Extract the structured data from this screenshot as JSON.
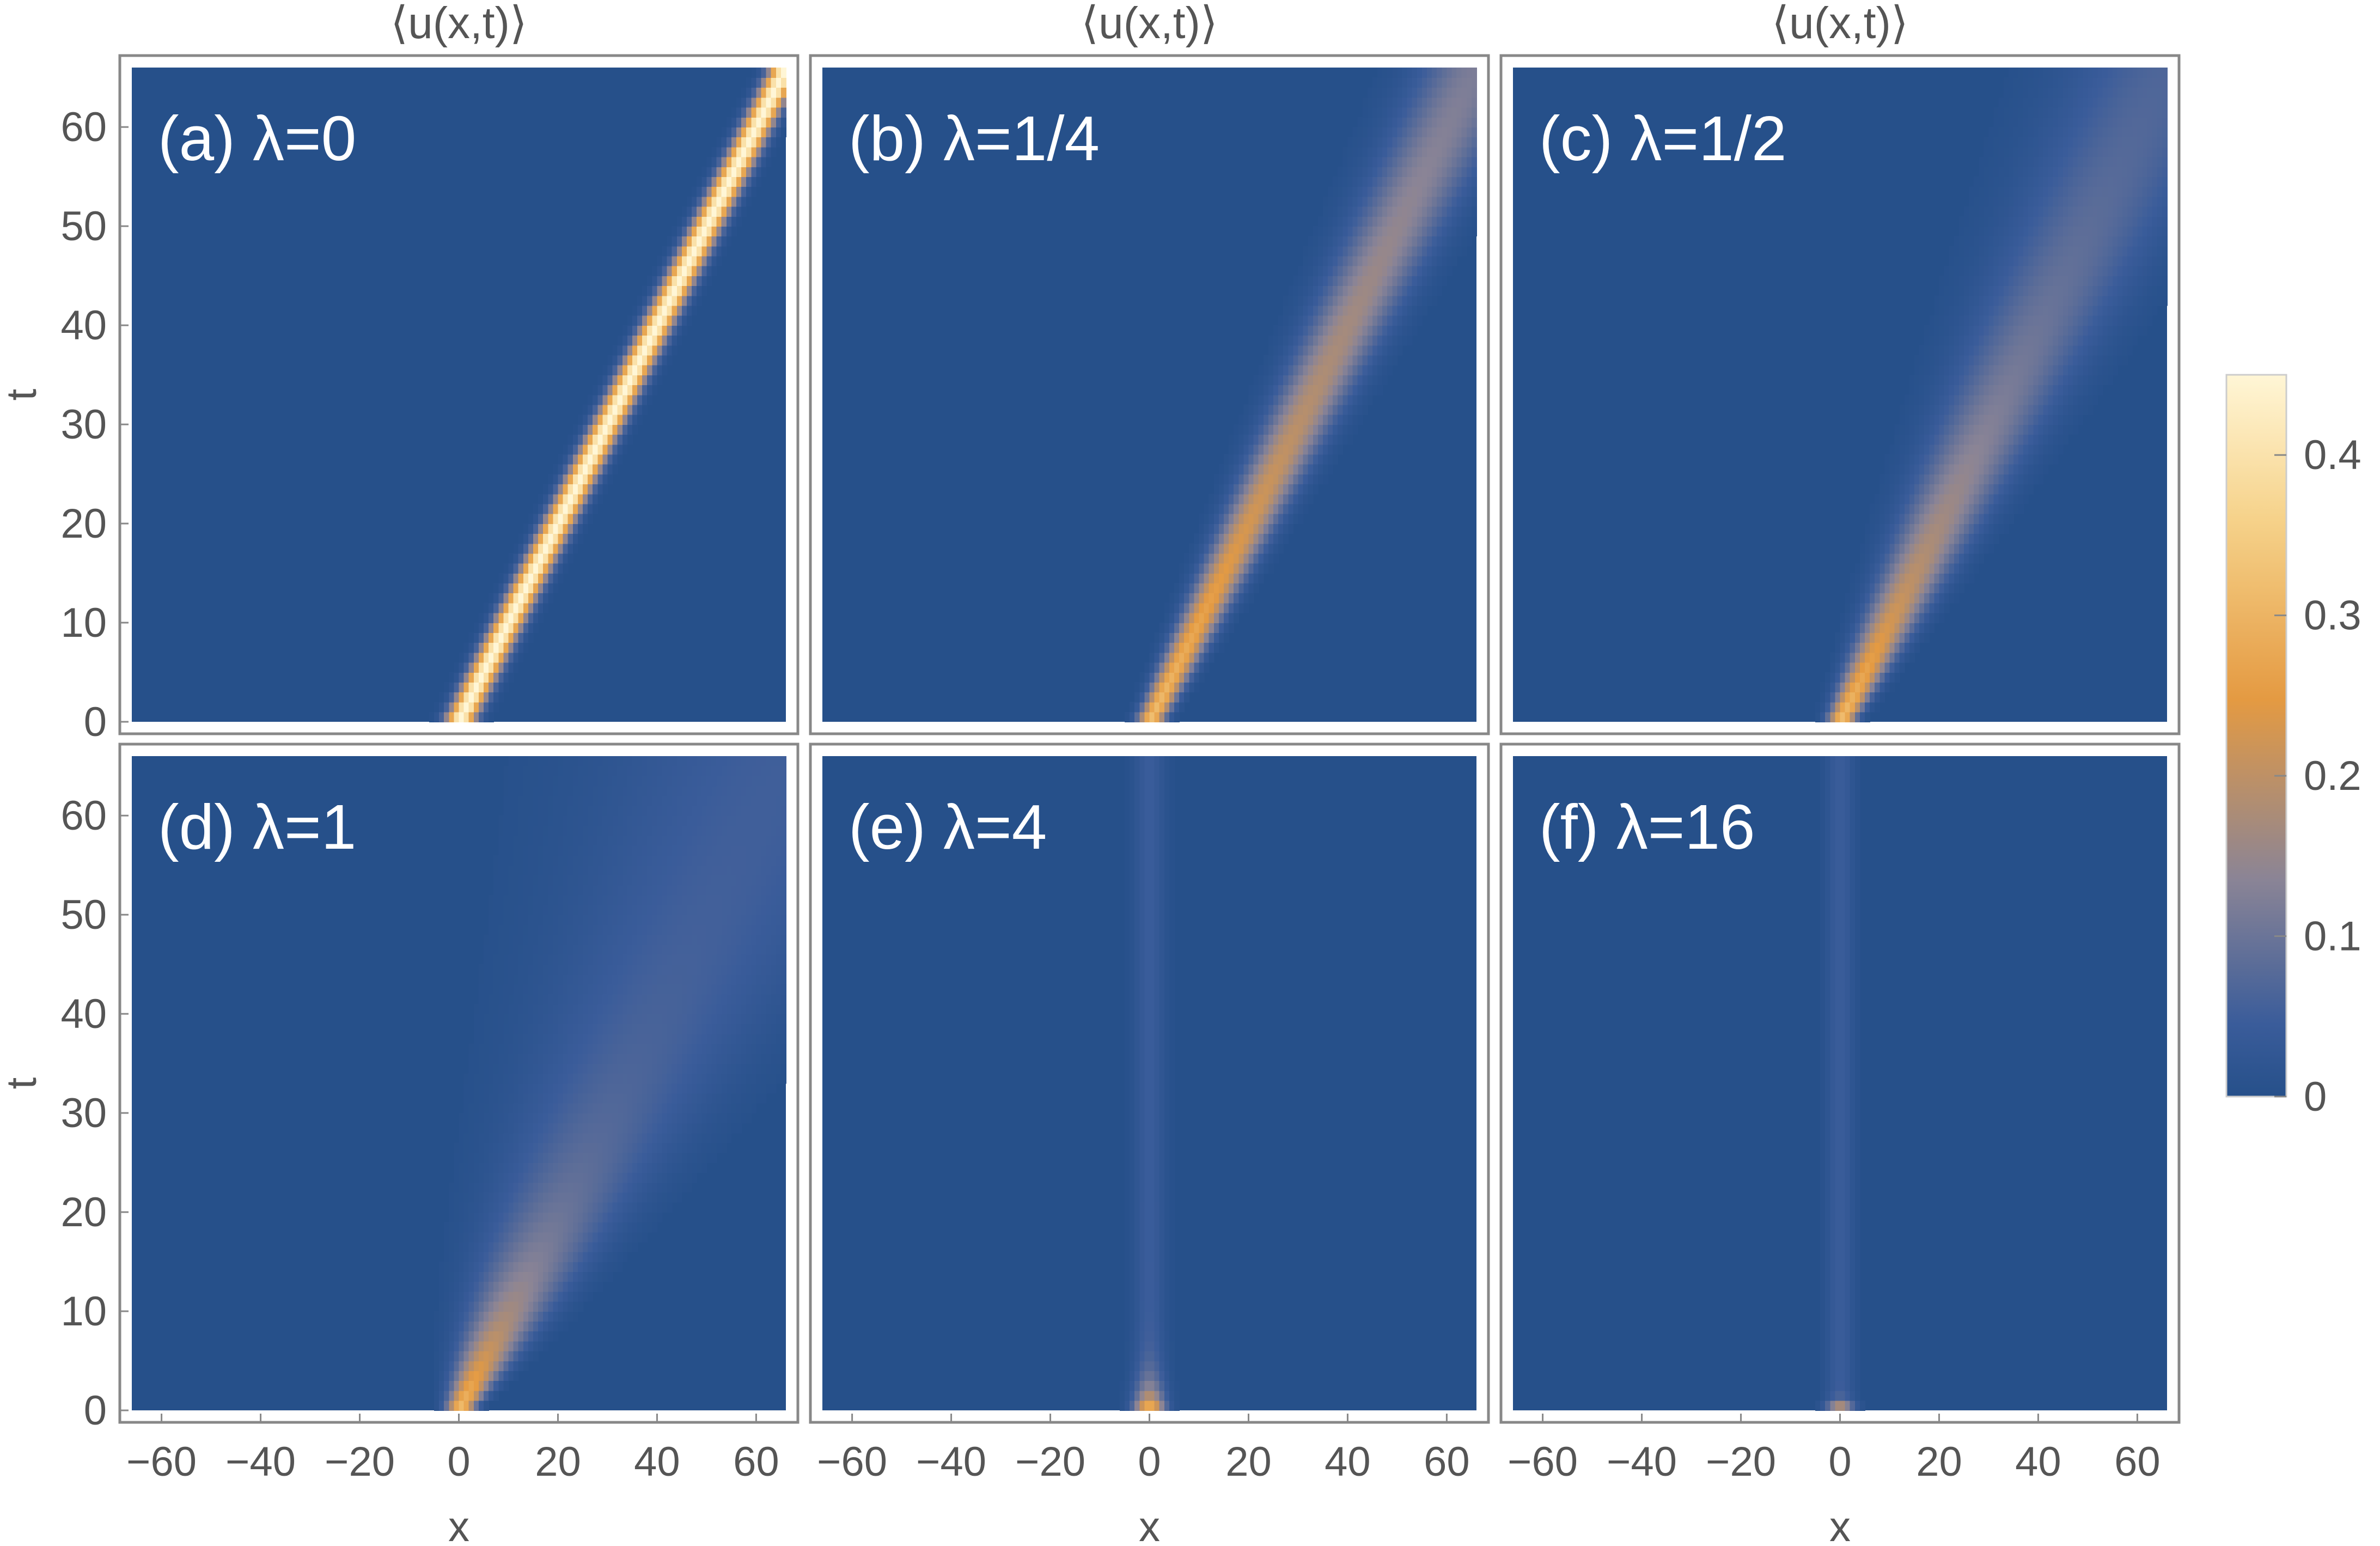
{
  "chart_data": {
    "type": "heatmap",
    "quantity_label": "⟨u(x,t)⟩",
    "xlabel": "x",
    "ylabel": "t",
    "xlim": [
      -66,
      66
    ],
    "ylim": [
      0,
      66
    ],
    "x_ticks": [
      "-60",
      "-40",
      "-20",
      "0",
      "20",
      "40",
      "60"
    ],
    "y_ticks": [
      "0",
      "10",
      "20",
      "30",
      "40",
      "50",
      "60"
    ],
    "colorbar": {
      "range": [
        0,
        0.45
      ],
      "ticks": [
        "0",
        "0.1",
        "0.2",
        "0.3",
        "0.4"
      ],
      "colors": [
        "#26508a",
        "#3a5c9a",
        "#8a8496",
        "#e49a42",
        "#f6d28a",
        "#fff6d6"
      ]
    },
    "panels": [
      {
        "label": "(a) λ=0",
        "title": "⟨u(x,t)⟩",
        "lambda": 0,
        "peak_amplitude": 0.45,
        "velocity": 1,
        "width": 2.0
      },
      {
        "label": "(b) λ=1/4",
        "title": "⟨u(x,t)⟩",
        "lambda": 0.25,
        "peak_amplitude": 0.32,
        "velocity": 1,
        "width": 1.8
      },
      {
        "label": "(c) λ=1/2",
        "title": "⟨u(x,t)⟩",
        "lambda": 0.5,
        "peak_amplitude": 0.32,
        "velocity": 1,
        "width": 1.8
      },
      {
        "label": "(d) λ=1",
        "title": "",
        "lambda": 1,
        "peak_amplitude": 0.32,
        "velocity": 1,
        "width": 1.8
      },
      {
        "label": "(e) λ=4",
        "title": "",
        "lambda": 4,
        "peak_amplitude": 0.3,
        "velocity": 0,
        "width": 1.5
      },
      {
        "label": "(f) λ=16",
        "title": "",
        "lambda": 16,
        "peak_amplitude": 0.35,
        "velocity": 0,
        "width": 1.3
      }
    ]
  }
}
